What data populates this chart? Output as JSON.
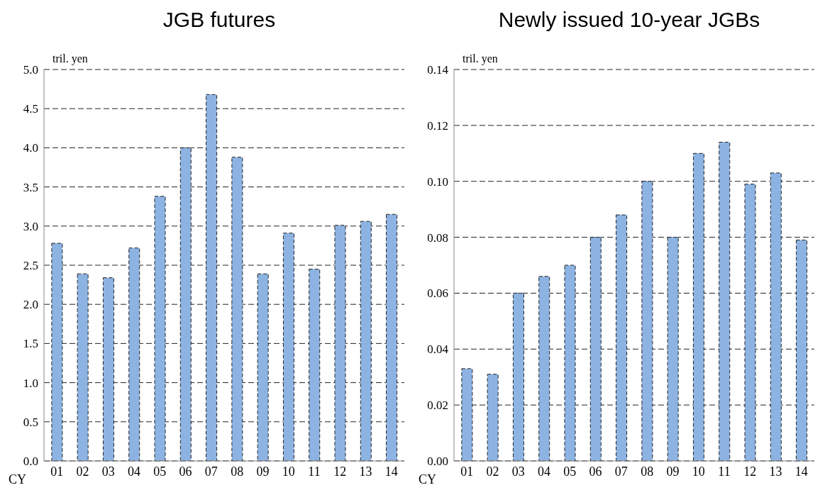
{
  "chart_data": [
    {
      "type": "bar",
      "title": "JGB futures",
      "ylabel": "tril. yen",
      "xlabel": "CY",
      "categories": [
        "01",
        "02",
        "03",
        "04",
        "05",
        "06",
        "07",
        "08",
        "09",
        "10",
        "11",
        "12",
        "13",
        "14"
      ],
      "values": [
        2.78,
        2.39,
        2.34,
        2.72,
        3.38,
        4.0,
        4.68,
        3.88,
        2.39,
        2.91,
        2.45,
        3.01,
        3.06,
        3.15
      ],
      "color": "#8db3e2",
      "ylim": [
        0,
        5
      ],
      "yticks": [
        {
          "value": 0,
          "label": "0.0"
        },
        0.5,
        {
          "value": 1,
          "label": "1.0"
        },
        1.5,
        {
          "value": 2,
          "label": "2.0"
        },
        2.5,
        {
          "value": 3,
          "label": "3.0"
        },
        3.5,
        {
          "value": 4,
          "label": "4.0"
        },
        4.5,
        {
          "value": 5,
          "label": "5.0"
        }
      ],
      "grid": "y"
    },
    {
      "type": "bar",
      "title": "Newly issued 10-year JGBs",
      "ylabel": "tril. yen",
      "xlabel": "CY",
      "categories": [
        "01",
        "02",
        "03",
        "04",
        "05",
        "06",
        "07",
        "08",
        "09",
        "10",
        "11",
        "12",
        "13",
        "14"
      ],
      "values": [
        0.033,
        0.031,
        0.06,
        0.066,
        0.07,
        0.08,
        0.088,
        0.1,
        0.08,
        0.11,
        0.114,
        0.099,
        0.103,
        0.079
      ],
      "color": "#8db3e2",
      "ylim": [
        0,
        0.14
      ],
      "yticks": [
        {
          "value": 0,
          "label": "0.00"
        },
        {
          "value": 0.02,
          "label": "0.02"
        },
        {
          "value": 0.04,
          "label": "0.04"
        },
        {
          "value": 0.06,
          "label": "0.06"
        },
        {
          "value": 0.08,
          "label": "0.08"
        },
        {
          "value": 0.1,
          "label": "0.10"
        },
        {
          "value": 0.12,
          "label": "0.12"
        },
        {
          "value": 0.14,
          "label": "0.14"
        }
      ],
      "grid": "y"
    }
  ]
}
